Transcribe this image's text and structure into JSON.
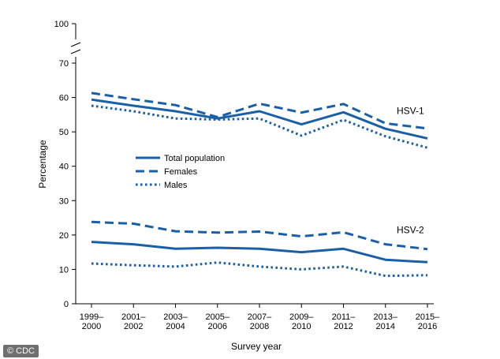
{
  "chart_data": {
    "type": "line",
    "title": "",
    "xlabel": "Survey year",
    "ylabel": "Percentage",
    "ylim": [
      0,
      100
    ],
    "y_ticks": [
      0,
      10,
      20,
      30,
      40,
      50,
      60,
      70,
      100
    ],
    "y_axis_break": [
      75,
      95
    ],
    "grid": false,
    "legend_position": "center-left",
    "categories": [
      [
        "1999–",
        "2000"
      ],
      [
        "2001–",
        "2002"
      ],
      [
        "2003–",
        "2004"
      ],
      [
        "2005–",
        "2006"
      ],
      [
        "2007–",
        "2008"
      ],
      [
        "2009–",
        "2010"
      ],
      [
        "2011–",
        "2012"
      ],
      [
        "2013–",
        "2014"
      ],
      [
        "2015–",
        "2016"
      ]
    ],
    "styles": [
      {
        "name": "Total population",
        "dash": "solid"
      },
      {
        "name": "Females",
        "dash": "dashed"
      },
      {
        "name": "Males",
        "dash": "dotted"
      }
    ],
    "groups": [
      {
        "label": "HSV-1",
        "series": [
          {
            "name": "Total population",
            "values": [
              59.4,
              57.6,
              56.0,
              53.9,
              56.0,
              52.2,
              55.7,
              50.9,
              48.1
            ]
          },
          {
            "name": "Females",
            "values": [
              61.3,
              59.5,
              57.8,
              54.3,
              58.2,
              55.6,
              58.1,
              52.5,
              51.0
            ]
          },
          {
            "name": "Males",
            "values": [
              57.6,
              56.0,
              53.9,
              53.6,
              53.9,
              48.9,
              53.5,
              48.7,
              45.4
            ]
          }
        ]
      },
      {
        "label": "HSV-2",
        "series": [
          {
            "name": "Total population",
            "values": [
              18.0,
              17.3,
              16.0,
              16.3,
              16.0,
              15.0,
              16.0,
              12.8,
              12.1
            ]
          },
          {
            "name": "Females",
            "values": [
              23.8,
              23.3,
              21.1,
              20.7,
              21.0,
              19.6,
              20.8,
              17.3,
              15.9
            ]
          },
          {
            "name": "Males",
            "values": [
              11.7,
              11.2,
              10.8,
              12.0,
              10.8,
              10.0,
              10.8,
              8.1,
              8.3
            ]
          }
        ]
      }
    ]
  },
  "credit": "© CDC",
  "colors": {
    "line": "#1b5fa6",
    "axis": "#000000",
    "credit_bg": "#6f6f6f"
  }
}
